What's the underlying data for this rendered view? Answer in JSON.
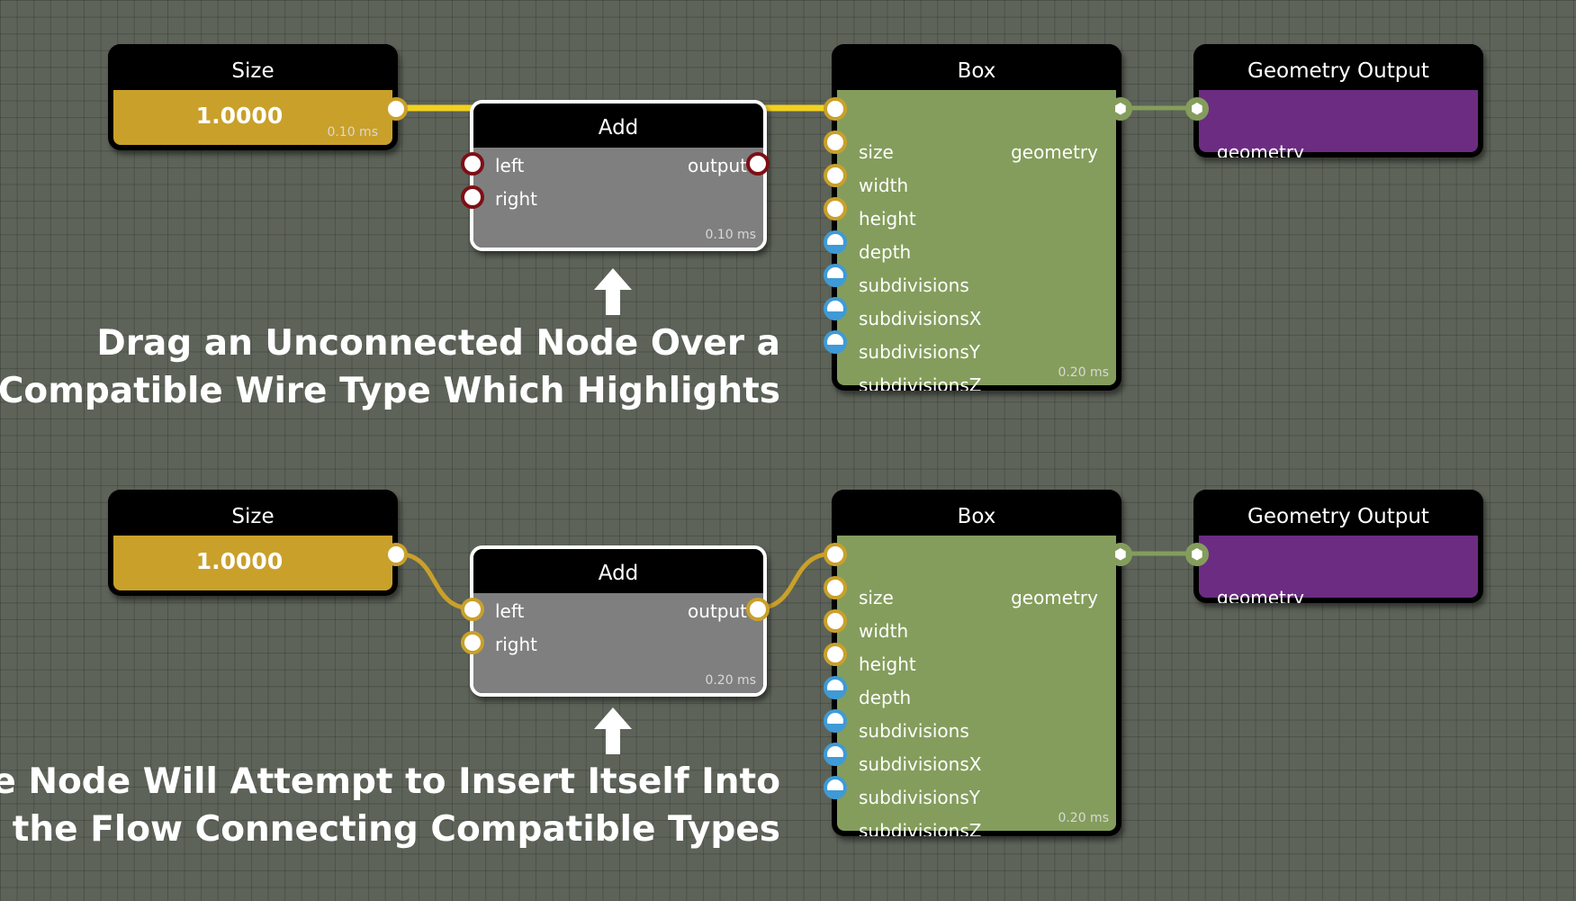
{
  "panels": [
    {
      "size_node": {
        "title": "Size",
        "value": "1.0000",
        "timing": "0.10 ms"
      },
      "add_node": {
        "title": "Add",
        "left_label": "left",
        "right_label": "right",
        "output_label": "output",
        "timing": "0.10 ms"
      },
      "box_node": {
        "title": "Box",
        "output_label": "geometry",
        "timing": "0.20 ms",
        "inputs": [
          "size",
          "width",
          "height",
          "depth",
          "subdivisions",
          "subdivisionsX",
          "subdivisionsY",
          "subdivisionsZ"
        ]
      },
      "geometry_output_node": {
        "title": "Geometry Output",
        "input_label": "geometry"
      },
      "caption_lines": [
        "Drag an Unconnected Node Over a",
        "Compatible Wire Type Which Highlights"
      ]
    },
    {
      "size_node": {
        "title": "Size",
        "value": "1.0000",
        "timing": ""
      },
      "add_node": {
        "title": "Add",
        "left_label": "left",
        "right_label": "right",
        "output_label": "output",
        "timing": "0.20 ms"
      },
      "box_node": {
        "title": "Box",
        "output_label": "geometry",
        "timing": "0.20 ms",
        "inputs": [
          "size",
          "width",
          "height",
          "depth",
          "subdivisions",
          "subdivisionsX",
          "subdivisionsY",
          "subdivisionsZ"
        ]
      },
      "geometry_output_node": {
        "title": "Geometry Output",
        "input_label": "geometry"
      },
      "caption_lines": [
        "The Node Will Attempt to Insert Itself Into",
        "the Flow Connecting Compatible Types"
      ]
    }
  ],
  "colors": {
    "number_port": "#c9a02a",
    "error_port": "#7d0f16",
    "integer_port": "#3f9ad6",
    "geometry_port": "#849d5c",
    "highlight_wire": "#f2d21f"
  },
  "icons": {
    "geometry_port_icon": "cube-icon",
    "caption_arrow": "arrow-up-icon"
  }
}
